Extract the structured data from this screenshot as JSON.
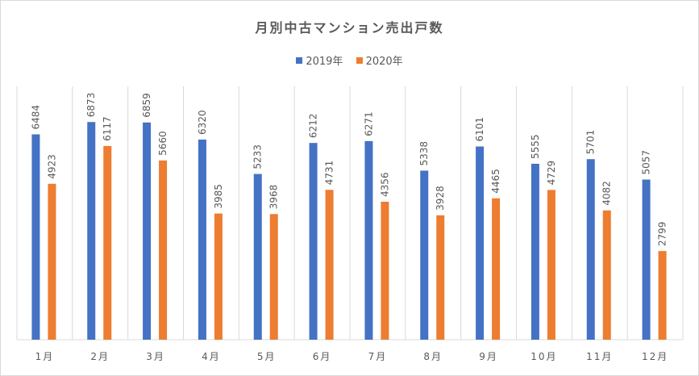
{
  "chart_data": {
    "type": "bar",
    "title": "月別中古マンション売出戸数",
    "categories": [
      "1月",
      "2月",
      "3月",
      "4月",
      "5月",
      "6月",
      "7月",
      "8月",
      "9月",
      "10月",
      "11月",
      "12月"
    ],
    "series": [
      {
        "name": "2019年",
        "color": "#4472c4",
        "values": [
          6484,
          6873,
          6859,
          6320,
          5233,
          6212,
          6271,
          5338,
          6101,
          5555,
          5701,
          5057
        ]
      },
      {
        "name": "2020年",
        "color": "#ed7d31",
        "values": [
          4923,
          6117,
          5660,
          3985,
          3968,
          4731,
          4356,
          3928,
          4465,
          4729,
          4082,
          2799
        ]
      }
    ],
    "ylim": [
      0,
      8000
    ],
    "grid": "vertical",
    "legend": "top"
  }
}
